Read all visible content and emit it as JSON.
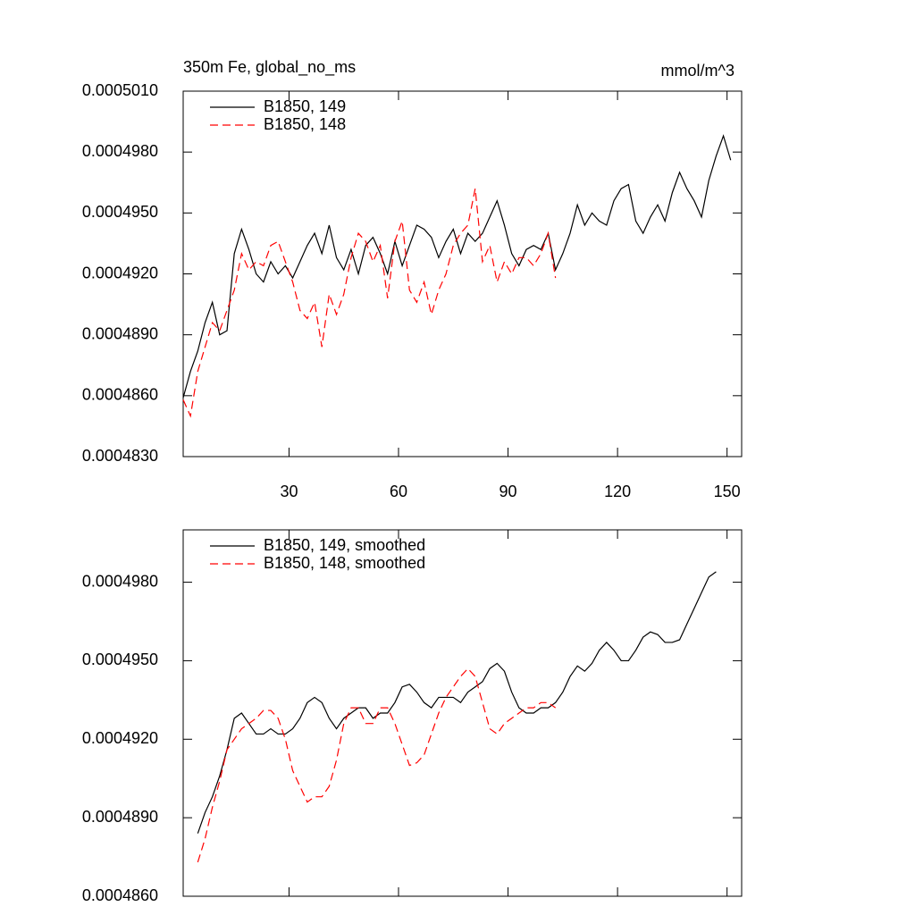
{
  "chart_data": [
    {
      "type": "line",
      "title": "350m Fe, global_no_ms",
      "units": "mmol/m^3",
      "x": [
        1,
        3,
        5,
        7,
        9,
        11,
        13,
        15,
        17,
        19,
        21,
        23,
        25,
        27,
        29,
        31,
        33,
        35,
        37,
        39,
        41,
        43,
        45,
        47,
        49,
        51,
        53,
        55,
        57,
        59,
        61,
        63,
        65,
        67,
        69,
        71,
        73,
        75,
        77,
        79,
        81,
        83,
        85,
        87,
        89,
        91,
        93,
        95,
        97,
        99,
        101,
        103,
        105,
        107,
        109,
        111,
        113,
        115,
        117,
        119,
        121,
        123,
        125,
        127,
        129,
        131,
        133,
        135,
        137,
        139,
        141,
        143,
        145,
        147,
        149,
        151
      ],
      "series": [
        {
          "name": "B1850, 149",
          "color": "#000000",
          "dash": false,
          "values": [
            0.0004859,
            0.0004872,
            0.0004882,
            0.0004896,
            0.0004906,
            0.000489,
            0.0004892,
            0.000493,
            0.0004942,
            0.0004932,
            0.000492,
            0.0004916,
            0.0004926,
            0.000492,
            0.0004924,
            0.0004918,
            0.0004926,
            0.0004934,
            0.000494,
            0.000493,
            0.0004944,
            0.0004928,
            0.0004922,
            0.0004932,
            0.000492,
            0.0004934,
            0.0004938,
            0.000493,
            0.000492,
            0.0004936,
            0.0004924,
            0.0004934,
            0.0004944,
            0.0004942,
            0.0004938,
            0.0004928,
            0.0004936,
            0.0004942,
            0.000493,
            0.000494,
            0.0004936,
            0.000494,
            0.0004948,
            0.0004956,
            0.0004944,
            0.000493,
            0.0004924,
            0.0004932,
            0.0004934,
            0.0004932,
            0.000494,
            0.0004922,
            0.000493,
            0.000494,
            0.0004954,
            0.0004944,
            0.000495,
            0.0004946,
            0.0004944,
            0.0004956,
            0.0004962,
            0.0004964,
            0.0004946,
            0.000494,
            0.0004948,
            0.0004954,
            0.0004946,
            0.000496,
            0.000497,
            0.0004962,
            0.0004956,
            0.0004948,
            0.0004966,
            0.0004978,
            0.0004988,
            0.0004976
          ]
        },
        {
          "name": "B1850, 148",
          "color": "#ff0000",
          "dash": true,
          "values": [
            0.0004858,
            0.000485,
            0.0004872,
            0.0004884,
            0.0004896,
            0.0004892,
            0.0004902,
            0.0004912,
            0.000493,
            0.0004922,
            0.0004926,
            0.0004924,
            0.0004934,
            0.0004936,
            0.0004926,
            0.0004916,
            0.0004902,
            0.0004898,
            0.0004906,
            0.0004884,
            0.000491,
            0.00049,
            0.000491,
            0.0004928,
            0.000494,
            0.0004936,
            0.0004926,
            0.0004934,
            0.0004908,
            0.0004936,
            0.0004946,
            0.0004912,
            0.0004906,
            0.0004916,
            0.00049,
            0.0004912,
            0.000492,
            0.0004934,
            0.000494,
            0.0004944,
            0.0004962,
            0.0004926,
            0.0004934,
            0.0004916,
            0.0004926,
            0.000492,
            0.0004928,
            0.0004928,
            0.0004924,
            0.000493,
            0.000494,
            0.0004918,
            null,
            null,
            null,
            null,
            null,
            null,
            null,
            null,
            null,
            null,
            null,
            null,
            null,
            null,
            null,
            null,
            null,
            null,
            null,
            null,
            null,
            null,
            null,
            null
          ]
        }
      ],
      "xlim": [
        1,
        154
      ],
      "xticks": [
        30,
        60,
        90,
        120,
        150
      ],
      "xtick_labels": true,
      "ylim": [
        0.000483,
        0.000501
      ],
      "yticks": [
        {
          "value": 0.000483,
          "label": "0.0004830"
        },
        {
          "value": 0.000486,
          "label": "0.0004860"
        },
        {
          "value": 0.000489,
          "label": "0.0004890"
        },
        {
          "value": 0.000492,
          "label": "0.0004920"
        },
        {
          "value": 0.000495,
          "label": "0.0004950"
        },
        {
          "value": 0.000498,
          "label": "0.0004980"
        },
        {
          "value": 0.000501,
          "label": "0.0005010"
        }
      ],
      "legend": "upper left",
      "grid": false
    },
    {
      "type": "line",
      "x": [
        5,
        7,
        9,
        11,
        13,
        15,
        17,
        19,
        21,
        23,
        25,
        27,
        29,
        31,
        33,
        35,
        37,
        39,
        41,
        43,
        45,
        47,
        49,
        51,
        53,
        55,
        57,
        59,
        61,
        63,
        65,
        67,
        69,
        71,
        73,
        75,
        77,
        79,
        81,
        83,
        85,
        87,
        89,
        91,
        93,
        95,
        97,
        99,
        101,
        103,
        105,
        107,
        109,
        111,
        113,
        115,
        117,
        119,
        121,
        123,
        125,
        127,
        129,
        131,
        133,
        135,
        137,
        139,
        141,
        143,
        145,
        147
      ],
      "series": [
        {
          "name": "B1850, 149, smoothed",
          "color": "#000000",
          "dash": false,
          "values": [
            0.0004884,
            0.0004892,
            0.0004898,
            0.0004906,
            0.0004916,
            0.0004928,
            0.000493,
            0.0004926,
            0.0004922,
            0.0004922,
            0.0004924,
            0.0004922,
            0.0004922,
            0.0004924,
            0.0004928,
            0.0004934,
            0.0004936,
            0.0004934,
            0.0004928,
            0.0004924,
            0.0004928,
            0.000493,
            0.0004932,
            0.0004932,
            0.0004928,
            0.000493,
            0.000493,
            0.0004934,
            0.000494,
            0.0004941,
            0.0004938,
            0.0004934,
            0.0004932,
            0.0004936,
            0.0004936,
            0.0004936,
            0.0004934,
            0.0004938,
            0.000494,
            0.0004942,
            0.0004947,
            0.0004949,
            0.0004946,
            0.0004938,
            0.0004932,
            0.000493,
            0.000493,
            0.0004932,
            0.0004932,
            0.0004934,
            0.0004938,
            0.0004944,
            0.0004948,
            0.0004946,
            0.0004949,
            0.0004954,
            0.0004957,
            0.0004954,
            0.000495,
            0.000495,
            0.0004954,
            0.0004959,
            0.0004961,
            0.000496,
            0.0004957,
            0.0004957,
            0.0004958,
            0.0004964,
            0.000497,
            0.0004976,
            0.0004982,
            0.0004984
          ]
        },
        {
          "name": "B1850, 148, smoothed",
          "color": "#ff0000",
          "dash": true,
          "values": [
            0.0004873,
            0.0004882,
            0.0004894,
            0.0004904,
            0.0004916,
            0.000492,
            0.0004924,
            0.0004926,
            0.0004928,
            0.0004931,
            0.0004931,
            0.0004928,
            0.000492,
            0.0004908,
            0.0004902,
            0.0004896,
            0.0004898,
            0.0004898,
            0.0004902,
            0.0004912,
            0.0004926,
            0.0004932,
            0.0004932,
            0.0004926,
            0.0004926,
            0.0004932,
            0.0004932,
            0.0004926,
            0.0004918,
            0.000491,
            0.0004911,
            0.0004914,
            0.0004922,
            0.000493,
            0.0004936,
            0.000494,
            0.0004944,
            0.0004947,
            0.0004944,
            0.0004934,
            0.0004924,
            0.0004922,
            0.0004926,
            0.0004928,
            0.000493,
            0.0004932,
            0.0004932,
            0.0004934,
            0.0004934,
            0.0004932,
            null,
            null,
            null,
            null,
            null,
            null,
            null,
            null,
            null,
            null,
            null,
            null,
            null,
            null,
            null,
            null,
            null,
            null,
            null,
            null,
            null,
            null
          ]
        }
      ],
      "xlim": [
        1,
        154
      ],
      "xticks": [
        30,
        60,
        90,
        120,
        150
      ],
      "xtick_labels": false,
      "ylim": [
        0.000486,
        0.0005
      ],
      "yticks": [
        {
          "value": 0.000486,
          "label": "0.0004860"
        },
        {
          "value": 0.000489,
          "label": "0.0004890"
        },
        {
          "value": 0.000492,
          "label": "0.0004920"
        },
        {
          "value": 0.000495,
          "label": "0.0004950"
        },
        {
          "value": 0.000498,
          "label": "0.0004980"
        }
      ],
      "legend": "upper left",
      "grid": false
    }
  ]
}
